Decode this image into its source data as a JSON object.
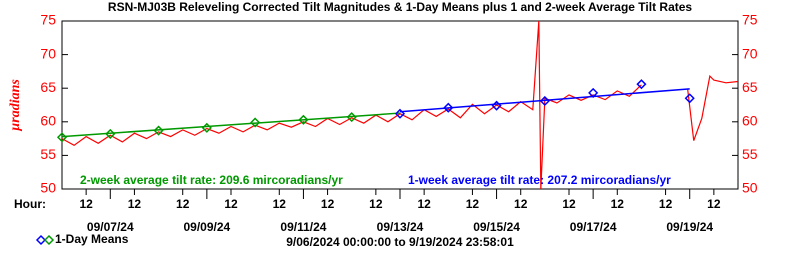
{
  "chart_data": {
    "type": "line",
    "title": "RSN-MJ03B  Releveling Corrected Tilt Magnitudes & 1-Day Means plus 1 and 2-week Average Tilt Rates",
    "y_label": "µradians",
    "hour_label": "Hour:",
    "range_text": "9/06/2024 00:00:00  to  9/19/2024 23:58:01",
    "axis_color": "#ff0000",
    "xlim": [
      "2024-09-06T00:00",
      "2024-09-20T00:00"
    ],
    "ylim": [
      50,
      75
    ],
    "yticks": [
      50,
      55,
      60,
      65,
      70,
      75
    ],
    "y2lim": [
      50,
      75
    ],
    "y2ticks": [
      50,
      55,
      60,
      65,
      70,
      75
    ],
    "xticks": [
      {
        "value": "2024-09-06T12:00",
        "label": "12"
      },
      {
        "value": "2024-09-07T12:00",
        "label": "12"
      },
      {
        "value": "2024-09-08T12:00",
        "label": "12"
      },
      {
        "value": "2024-09-09T12:00",
        "label": "12"
      },
      {
        "value": "2024-09-10T12:00",
        "label": "12"
      },
      {
        "value": "2024-09-11T12:00",
        "label": "12"
      },
      {
        "value": "2024-09-12T12:00",
        "label": "12"
      },
      {
        "value": "2024-09-13T12:00",
        "label": "12"
      },
      {
        "value": "2024-09-14T12:00",
        "label": "12"
      },
      {
        "value": "2024-09-15T12:00",
        "label": "12"
      },
      {
        "value": "2024-09-16T12:00",
        "label": "12"
      },
      {
        "value": "2024-09-17T12:00",
        "label": "12"
      },
      {
        "value": "2024-09-18T12:00",
        "label": "12"
      },
      {
        "value": "2024-09-19T12:00",
        "label": "12"
      }
    ],
    "date_ticks": [
      {
        "value": "2024-09-07T00:00",
        "label": "09/07/24"
      },
      {
        "value": "2024-09-09T00:00",
        "label": "09/09/24"
      },
      {
        "value": "2024-09-11T00:00",
        "label": "09/11/24"
      },
      {
        "value": "2024-09-13T00:00",
        "label": "09/13/24"
      },
      {
        "value": "2024-09-15T00:00",
        "label": "09/15/24"
      },
      {
        "value": "2024-09-17T00:00",
        "label": "09/17/24"
      },
      {
        "value": "2024-09-19T00:00",
        "label": "09/19/24"
      }
    ],
    "series": [
      {
        "color": "#ff0000",
        "x": [
          "2024-09-06T00:00",
          "2024-09-06T06:00",
          "2024-09-06T12:00",
          "2024-09-06T18:00",
          "2024-09-07T00:00",
          "2024-09-07T06:00",
          "2024-09-07T12:00",
          "2024-09-07T18:00",
          "2024-09-08T00:00",
          "2024-09-08T06:00",
          "2024-09-08T12:00",
          "2024-09-08T18:00",
          "2024-09-09T00:00",
          "2024-09-09T06:00",
          "2024-09-09T12:00",
          "2024-09-09T18:00",
          "2024-09-10T00:00",
          "2024-09-10T06:00",
          "2024-09-10T12:00",
          "2024-09-10T18:00",
          "2024-09-11T00:00",
          "2024-09-11T06:00",
          "2024-09-11T12:00",
          "2024-09-11T18:00",
          "2024-09-12T00:00",
          "2024-09-12T06:00",
          "2024-09-12T12:00",
          "2024-09-12T18:00",
          "2024-09-13T00:00",
          "2024-09-13T06:00",
          "2024-09-13T12:00",
          "2024-09-13T18:00",
          "2024-09-14T00:00",
          "2024-09-14T06:00",
          "2024-09-14T12:00",
          "2024-09-14T18:00",
          "2024-09-15T00:00",
          "2024-09-15T06:00",
          "2024-09-15T12:00",
          "2024-09-15T18:00",
          "2024-09-15T21:00",
          "2024-09-15T22:00",
          "2024-09-16T00:00",
          "2024-09-16T06:00",
          "2024-09-16T12:00",
          "2024-09-16T18:00",
          "2024-09-17T00:00",
          "2024-09-17T06:00",
          "2024-09-17T12:00",
          "2024-09-17T18:00",
          "2024-09-18T00:00",
          "2024-09-18T06:00",
          "2024-09-18T12:00",
          "2024-09-18T18:00",
          "2024-09-18T23:00",
          "2024-09-19T02:00",
          "2024-09-19T06:00",
          "2024-09-19T10:00",
          "2024-09-19T12:00",
          "2024-09-19T18:00",
          "2024-09-19T23:58"
        ],
        "values": [
          57.5,
          56.5,
          57.8,
          56.8,
          58.0,
          57.0,
          58.3,
          57.5,
          58.5,
          57.8,
          58.8,
          58.0,
          59.0,
          58.3,
          59.3,
          58.5,
          59.5,
          58.8,
          59.8,
          59.2,
          60.0,
          59.3,
          60.5,
          59.6,
          60.6,
          59.8,
          61.0,
          60.0,
          61.2,
          60.3,
          61.8,
          60.8,
          61.9,
          60.6,
          62.6,
          61.2,
          62.5,
          61.5,
          63.0,
          61.8,
          75,
          50,
          63.5,
          62.8,
          64.0,
          63.2,
          64.0,
          63.3,
          64.6,
          63.8,
          65.5,
          null,
          null,
          null,
          64.8,
          57.2,
          60.5,
          66.8,
          66.2,
          65.8,
          66.0
        ]
      }
    ],
    "means": {
      "name": "1-Day Means",
      "x": [
        "2024-09-06T00:00",
        "2024-09-07T00:00",
        "2024-09-08T00:00",
        "2024-09-09T00:00",
        "2024-09-10T00:00",
        "2024-09-11T00:00",
        "2024-09-12T00:00",
        "2024-09-13T00:00",
        "2024-09-14T00:00",
        "2024-09-15T00:00",
        "2024-09-16T00:00",
        "2024-09-17T00:00",
        "2024-09-18T00:00",
        "2024-09-19T00:00"
      ],
      "values": [
        57.7,
        58.2,
        58.7,
        59.1,
        59.9,
        60.3,
        60.7,
        61.2,
        62.1,
        62.4,
        63.1,
        64.3,
        65.6,
        63.5
      ],
      "colors": [
        "#009900",
        "#009900",
        "#009900",
        "#009900",
        "#009900",
        "#009900",
        "#009900",
        "#0000ff",
        "#0000ff",
        "#0000ff",
        "#0000ff",
        "#0000ff",
        "#0000ff",
        "#0000ff"
      ]
    },
    "trends": [
      {
        "color": "#009900",
        "x": [
          "2024-09-06T00:00",
          "2024-09-13T00:00"
        ],
        "values": [
          57.8,
          61.3
        ]
      },
      {
        "color": "#0000ff",
        "x": [
          "2024-09-13T00:00",
          "2024-09-19T00:00"
        ],
        "values": [
          61.5,
          64.9
        ]
      }
    ],
    "annotations": [
      {
        "text": "2-week average tilt rate:   209.6 mircoradians/yr",
        "color": "#009900"
      },
      {
        "text": "1-week average tilt rate:   207.2 mircoradians/yr",
        "color": "#0000ff"
      }
    ]
  }
}
